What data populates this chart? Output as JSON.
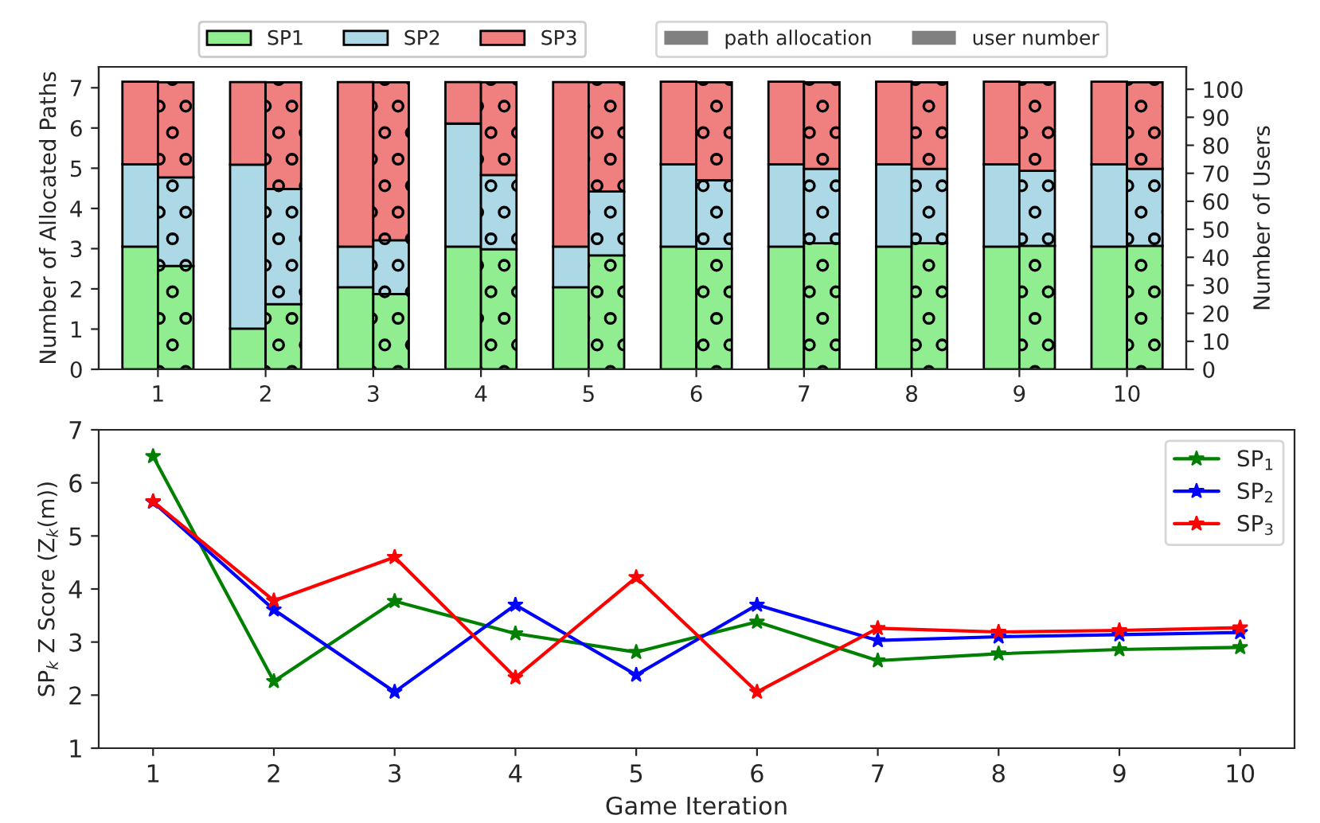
{
  "chart_data": [
    {
      "type": "bar",
      "stacked": true,
      "categories": [
        "1",
        "2",
        "3",
        "4",
        "5",
        "6",
        "7",
        "8",
        "9",
        "10"
      ],
      "ylabel": "Number of Allocated Paths",
      "y2label": "Number of Users",
      "ylim": [
        0,
        7.52
      ],
      "yticks": [
        0,
        1,
        2,
        3,
        4,
        5,
        6,
        7
      ],
      "y2lim": [
        0,
        108
      ],
      "y2ticks": [
        0,
        10,
        20,
        30,
        40,
        50,
        60,
        70,
        80,
        90,
        100
      ],
      "legend": "top",
      "grid": false,
      "annotations": [
        "path allocation",
        "user number"
      ],
      "series": [
        {
          "name": "SP1",
          "color": "#90ee90",
          "values": [
            3.05,
            1.01,
            2.04,
            3.05,
            2.04,
            3.05,
            3.05,
            3.05,
            3.05,
            3.05
          ]
        },
        {
          "name": "SP2",
          "color": "#add8e6",
          "values": [
            2.05,
            4.08,
            1.01,
            3.06,
            1.01,
            2.05,
            2.05,
            2.05,
            2.05,
            2.05
          ]
        },
        {
          "name": "SP3",
          "color": "#f08080",
          "values": [
            2.05,
            2.05,
            4.09,
            1.03,
            4.09,
            2.05,
            2.05,
            2.05,
            2.05,
            2.05
          ]
        },
        {
          "axis": "y2",
          "color": "#90ee90",
          "values": [
            36.9,
            23.3,
            26.9,
            42.9,
            40.7,
            43.0,
            45.0,
            45.0,
            44.1,
            44.1
          ]
        },
        {
          "axis": "y2",
          "color": "#add8e6",
          "values": [
            31.6,
            41.1,
            19.2,
            26.5,
            22.8,
            24.5,
            26.6,
            26.6,
            26.8,
            27.5
          ]
        },
        {
          "axis": "y2",
          "color": "#f08080",
          "values": [
            34.0,
            38.1,
            56.4,
            33.1,
            39.0,
            35.0,
            30.9,
            30.9,
            31.6,
            30.9
          ]
        }
      ]
    },
    {
      "type": "line",
      "x": [
        1,
        2,
        3,
        4,
        5,
        6,
        7,
        8,
        9,
        10
      ],
      "xlim": [
        0.55,
        10.45
      ],
      "xticks": [
        1,
        2,
        3,
        4,
        5,
        6,
        7,
        8,
        9,
        10
      ],
      "ylim": [
        1,
        7
      ],
      "yticks": [
        1,
        2,
        3,
        4,
        5,
        6,
        7
      ],
      "xlabel": "Game Iteration",
      "ylabel": "SP$_{k}$ Z Score (Z$_{k}$(m))",
      "marker": "star",
      "legend": "top right",
      "grid": false,
      "series": [
        {
          "name": "SP$_{1}$",
          "color": "#008000",
          "values": [
            6.5,
            2.26,
            3.77,
            3.16,
            2.81,
            3.38,
            2.65,
            2.78,
            2.86,
            2.9
          ]
        },
        {
          "name": "SP$_{2}$",
          "color": "#0000ff",
          "values": [
            5.64,
            3.61,
            2.06,
            3.7,
            2.38,
            3.7,
            3.03,
            3.1,
            3.14,
            3.18
          ]
        },
        {
          "name": "SP$_{3}$",
          "color": "#ff0000",
          "values": [
            5.65,
            3.78,
            4.6,
            2.33,
            4.22,
            2.06,
            3.26,
            3.19,
            3.22,
            3.27
          ]
        }
      ]
    }
  ]
}
